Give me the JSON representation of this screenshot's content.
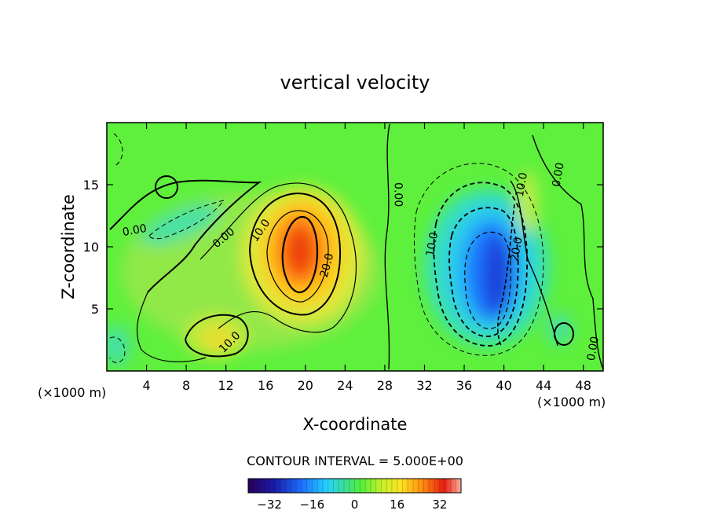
{
  "chart_data": {
    "type": "heatmap",
    "title": "vertical velocity",
    "xlabel": "X-coordinate",
    "ylabel": "Z-coordinate",
    "x_unit_left": "(×1000 m)",
    "x_unit_right": "(×1000 m)",
    "xlim": [
      0,
      50
    ],
    "ylim": [
      0,
      20
    ],
    "x_ticks": [
      4,
      8,
      12,
      16,
      20,
      24,
      28,
      32,
      36,
      40,
      44,
      48
    ],
    "y_ticks": [
      5,
      10,
      15
    ],
    "contour_interval_text": "CONTOUR INTERVAL = 5.000E+00",
    "colorbar": {
      "range": [
        -40,
        40
      ],
      "ticks": [
        -32,
        -16,
        0,
        16,
        32
      ],
      "tick_labels": [
        "−32",
        "−16",
        "0",
        "16",
        "32"
      ]
    },
    "contour_labels": [
      {
        "text": "0.00",
        "x": 2.8,
        "y": 11.3,
        "rotate": -10
      },
      {
        "text": "0.00",
        "x": 11.8,
        "y": 10.7,
        "rotate": -40
      },
      {
        "text": "10.0",
        "x": 15.5,
        "y": 11.3,
        "rotate": -55
      },
      {
        "text": "20.0",
        "x": 22.2,
        "y": 8.5,
        "rotate": -75
      },
      {
        "text": "10.0",
        "x": 12.4,
        "y": 2.3,
        "rotate": -45
      },
      {
        "text": "0.00",
        "x": 29.3,
        "y": 14.2,
        "rotate": 90
      },
      {
        "text": "10.0",
        "x": 32.8,
        "y": 10.2,
        "rotate": -80
      },
      {
        "text": "10.0",
        "x": 41.8,
        "y": 15.0,
        "rotate": -80
      },
      {
        "text": "20.0",
        "x": 41.3,
        "y": 9.8,
        "rotate": -80
      },
      {
        "text": "0.00",
        "x": 45.5,
        "y": 15.8,
        "rotate": -80
      },
      {
        "text": "0.00",
        "x": 49.0,
        "y": 1.8,
        "rotate": -80
      }
    ],
    "features": [
      {
        "kind": "updraft",
        "x": 19.5,
        "y": 9.5,
        "peak": 32
      },
      {
        "kind": "updraft",
        "x": 11,
        "y": 2.8,
        "peak": 12
      },
      {
        "kind": "downdraft",
        "x": 38.5,
        "y": 8.5,
        "peak": -30
      },
      {
        "kind": "updraft",
        "x": 42.5,
        "y": 12.5,
        "peak": 8
      },
      {
        "kind": "downdraft",
        "x": 7.5,
        "y": 12.5,
        "peak": -8
      }
    ]
  }
}
